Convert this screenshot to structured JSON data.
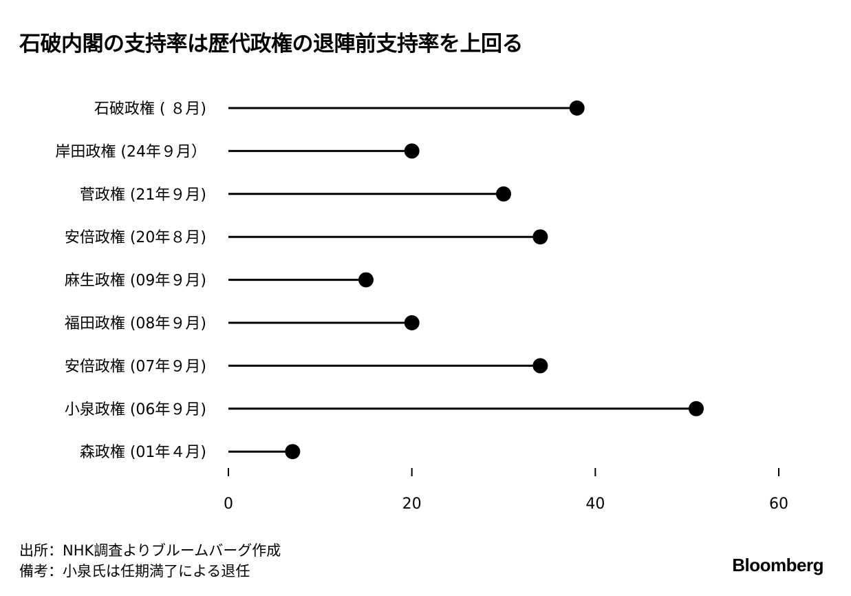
{
  "chart_data": {
    "type": "lollipop",
    "title": "石破内閣の支持率は歴代政権の退陣前支持率を上回る",
    "categories": [
      "石破政権 ( ８月)",
      "岸田政権 (24年９月）",
      "菅政権 (21年９月)",
      "安倍政権 (20年８月)",
      "麻生政権 (09年９月)",
      "福田政権 (08年９月)",
      "安倍政権 (07年９月)",
      "小泉政権 (06年９月)",
      "森政権 (01年４月)"
    ],
    "values": [
      38,
      20,
      30,
      34,
      15,
      20,
      34,
      51,
      7
    ],
    "xlim": [
      0,
      60
    ],
    "xticks": [
      "0",
      "20",
      "40",
      "60"
    ],
    "grid": false,
    "color": "#000000"
  },
  "footnotes": [
    "出所：NHK調査よりブルームバーグ作成",
    "備考：小泉氏は任期満了による退任"
  ],
  "logo": "Bloomberg"
}
